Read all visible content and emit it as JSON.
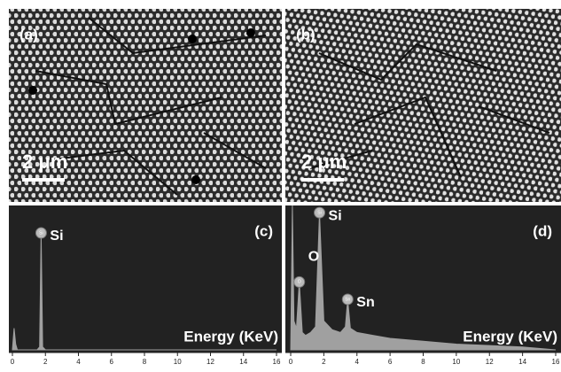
{
  "panels": [
    {
      "label": "(a)",
      "scale_bar": "2 μm"
    },
    {
      "label": "(b)",
      "scale_bar": "2 μm"
    }
  ],
  "chart_data": [
    {
      "type": "area",
      "panel_label": "(c)",
      "xlabel": "Energy (KeV)",
      "color": "#a0a0a0",
      "x": [
        0,
        0.1,
        0.2,
        0.3,
        1.5,
        1.65,
        1.74,
        1.83,
        2.0,
        16
      ],
      "values": [
        0,
        15,
        4,
        0,
        0,
        2,
        81,
        2,
        0,
        0
      ],
      "xlim": [
        0,
        16
      ],
      "xticks": [
        0,
        2,
        4,
        6,
        8,
        10,
        12,
        14,
        16
      ],
      "ylim": [
        0,
        100
      ],
      "annotations": [
        {
          "text": "Si",
          "x": 1.74,
          "y": 81
        }
      ]
    },
    {
      "type": "area",
      "panel_label": "(d)",
      "xlabel": "Energy (KeV)",
      "color": "#a0a0a0",
      "x": [
        0,
        0.1,
        0.2,
        0.35,
        0.52,
        0.7,
        0.9,
        1.2,
        1.5,
        1.74,
        2.0,
        2.5,
        3.0,
        3.3,
        3.44,
        3.6,
        4.0,
        5,
        6,
        8,
        10,
        12,
        14,
        16
      ],
      "values": [
        0,
        100,
        20,
        15,
        47,
        12,
        10,
        12,
        16,
        95,
        20,
        14,
        12,
        16,
        35,
        15,
        12,
        10,
        8,
        6,
        4,
        3,
        2,
        0
      ],
      "xlim": [
        0,
        16
      ],
      "xticks": [
        0,
        2,
        4,
        6,
        8,
        10,
        12,
        14,
        16
      ],
      "ylim": [
        0,
        100
      ],
      "annotations": [
        {
          "text": "O",
          "x": 0.52,
          "y": 47
        },
        {
          "text": "Si",
          "x": 1.74,
          "y": 95
        },
        {
          "text": "Sn",
          "x": 3.44,
          "y": 35
        }
      ]
    }
  ]
}
